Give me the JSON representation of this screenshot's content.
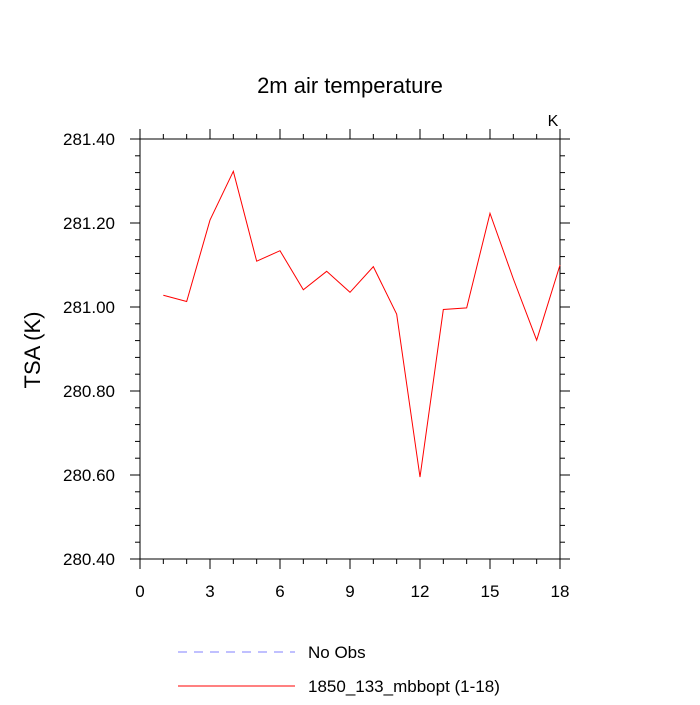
{
  "chart_data": {
    "type": "line",
    "title": "2m air temperature",
    "ylabel": "TSA  (K)",
    "xlabel": "",
    "units_label": "K",
    "xlim": [
      0,
      18
    ],
    "ylim": [
      280.4,
      281.4
    ],
    "x_ticks": [
      0,
      3,
      6,
      9,
      12,
      15,
      18
    ],
    "x_tick_labels": [
      "0",
      "3",
      "6",
      "9",
      "12",
      "15",
      "18"
    ],
    "y_ticks": [
      280.4,
      280.6,
      280.8,
      281.0,
      281.2,
      281.4
    ],
    "y_tick_labels": [
      "280.40",
      "280.60",
      "280.80",
      "281.00",
      "281.20",
      "281.40"
    ],
    "grid": false,
    "legend_position": "bottom",
    "series": [
      {
        "name": "1850_133_mbbopt (1-18)",
        "color": "#ff0000",
        "dash": "solid",
        "x": [
          1,
          2,
          3,
          4,
          5,
          6,
          7,
          8,
          9,
          10,
          11,
          12,
          13,
          14,
          15,
          16,
          17,
          18
        ],
        "values": [
          281.028,
          281.013,
          281.207,
          281.323,
          281.109,
          281.134,
          281.041,
          281.085,
          281.035,
          281.096,
          280.983,
          280.595,
          280.994,
          280.998,
          281.223,
          281.067,
          280.921,
          281.1
        ]
      }
    ],
    "legend": [
      {
        "label": "No Obs",
        "color": "#8080ff",
        "dash": "dashed"
      },
      {
        "label": "1850_133_mbbopt (1-18)",
        "color": "#ff0000",
        "dash": "solid"
      }
    ]
  }
}
